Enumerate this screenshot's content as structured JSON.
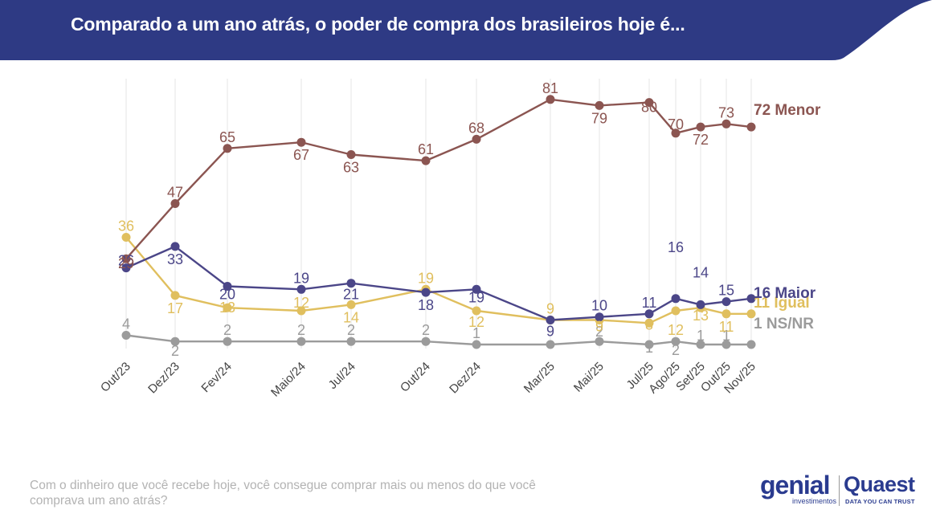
{
  "header": {
    "title": "Comparado a um ano atrás, o poder de compra dos brasileiros hoje é...",
    "bg_color": "#2e3a84"
  },
  "footer": {
    "question": "Com o dinheiro que você recebe hoje, você consegue comprar mais ou menos do que você comprava um ano atrás?"
  },
  "logos": {
    "genial": "genial",
    "genial_sub": "investimentos",
    "quaest": "Quaest",
    "quaest_tag": "DATA YOU CAN TRUST"
  },
  "chart_data": {
    "type": "line",
    "title": "Comparado a um ano atrás, o poder de compra dos brasileiros hoje é...",
    "categories": [
      "Out/23",
      "Dez/23",
      "Fev/24",
      "Maio/24",
      "Jul/24",
      "Out/24",
      "Dez/24",
      "Mar/25",
      "Mai/25",
      "Jul/25",
      "Ago/25",
      "Set/25",
      "Out/25",
      "Nov/25"
    ],
    "ylim": [
      0,
      85
    ],
    "grid": "vertical",
    "series": [
      {
        "name": "Menor",
        "end_label": "72 Menor",
        "color": "#8b5551",
        "values": [
          29,
          47,
          65,
          67,
          63,
          61,
          68,
          81,
          79,
          80,
          70,
          72,
          73,
          72
        ],
        "labels": [
          "29",
          "47",
          "65",
          "67",
          "63",
          "61",
          "68",
          "81",
          "79",
          "80",
          "70",
          "72",
          "73",
          ""
        ]
      },
      {
        "name": "Maior",
        "end_label": "16 Maior",
        "color": "#4b4688",
        "values": [
          26,
          33,
          20,
          19,
          21,
          18,
          19,
          9,
          10,
          11,
          16,
          14,
          15,
          16
        ],
        "labels": [
          "26",
          "33",
          "20",
          "19",
          "21",
          "18",
          "19",
          "9",
          "10",
          "11",
          "16",
          "14",
          "15",
          ""
        ]
      },
      {
        "name": "Igual",
        "end_label": "11 Igual",
        "color": "#e0bf5e",
        "values": [
          36,
          17,
          13,
          12,
          14,
          19,
          12,
          9,
          9,
          8,
          12,
          13,
          11,
          11
        ],
        "labels": [
          "36",
          "17",
          "13",
          "12",
          "14",
          "19",
          "12",
          "9",
          "9",
          "8",
          "12",
          "13",
          "11",
          ""
        ]
      },
      {
        "name": "NS/NR",
        "end_label": "1 NS/NR",
        "color": "#9b9b9b",
        "values": [
          4,
          2,
          2,
          2,
          2,
          2,
          1,
          1,
          2,
          1,
          2,
          1,
          1,
          1
        ],
        "labels": [
          "4",
          "2",
          "2",
          "2",
          "2",
          "2",
          "1",
          "",
          "2",
          "1",
          "2",
          "1",
          "1",
          ""
        ]
      }
    ]
  }
}
